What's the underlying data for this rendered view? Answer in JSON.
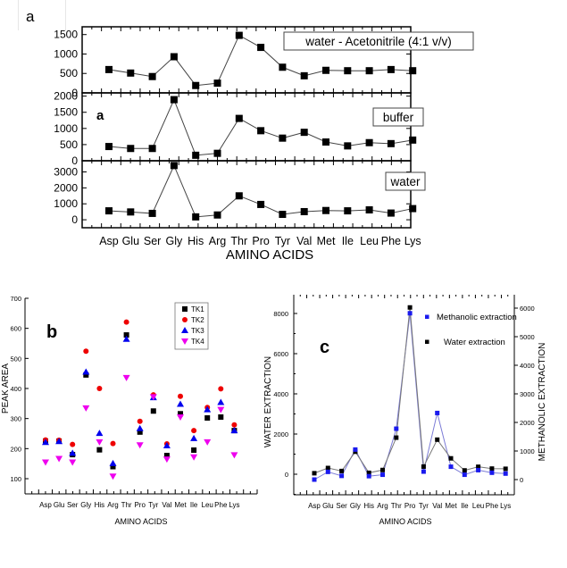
{
  "figure_label": "a",
  "chart_data": [
    {
      "id": "a",
      "type": "line",
      "panel_label": "a",
      "xlabel": "AMINO ACIDS",
      "categories": [
        "Asp",
        "Glu",
        "Ser",
        "Gly",
        "His",
        "Arg",
        "Thr",
        "Pro",
        "Tyr",
        "Val",
        "Met",
        "Ile",
        "Leu",
        "Phe",
        "Lys"
      ],
      "subplots": [
        {
          "legend": "water - Acetonitrile (4:1 v/v)",
          "ylim": [
            0,
            1700
          ],
          "yticks": [
            0,
            500,
            1000,
            1500
          ],
          "series": [
            {
              "name": "water - Acetonitrile (4:1 v/v)",
              "values": [
                600,
                510,
                420,
                930,
                190,
                250,
                1480,
                1170,
                660,
                440,
                580,
                570,
                570,
                600,
                570
              ]
            }
          ]
        },
        {
          "legend": "buffer",
          "annotation": "a",
          "ylim": [
            0,
            2100
          ],
          "yticks": [
            0,
            500,
            1000,
            1500,
            2000
          ],
          "series": [
            {
              "name": "buffer",
              "values": [
                440,
                380,
                380,
                1890,
                170,
                230,
                1310,
                930,
                700,
                880,
                580,
                460,
                560,
                530,
                640
              ]
            }
          ]
        },
        {
          "legend": "water",
          "ylim": [
            -500,
            3700
          ],
          "yticks": [
            0,
            1000,
            2000,
            3000
          ],
          "series": [
            {
              "name": "water",
              "values": [
                560,
                490,
                400,
                3400,
                180,
                300,
                1500,
                960,
                340,
                510,
                580,
                560,
                620,
                420,
                700
              ]
            }
          ]
        }
      ]
    },
    {
      "id": "b",
      "type": "scatter",
      "panel_label": "b",
      "xlabel": "AMINO ACIDS",
      "ylabel": "PEAK AREA",
      "ylim": [
        50,
        700
      ],
      "yticks": [
        100,
        200,
        300,
        400,
        500,
        600,
        700
      ],
      "categories": [
        "Asp",
        "Glu",
        "Ser",
        "Gly",
        "His",
        "Arg",
        "Thr",
        "Pro",
        "Tyr",
        "Val",
        "Met",
        "Ile",
        "Leu",
        "Phe",
        "Lys"
      ],
      "legend_position": "top-right",
      "series": [
        {
          "name": "TK1",
          "marker": "square",
          "color": "#000000",
          "values": [
            225,
            225,
            180,
            445,
            196,
            140,
            578,
            255,
            325,
            177,
            316,
            195,
            302,
            305,
            260
          ]
        },
        {
          "name": "TK2",
          "marker": "circle",
          "color": "#ee0000",
          "values": [
            229,
            228,
            214,
            524,
            400,
            217,
            621,
            291,
            379,
            216,
            374,
            260,
            337,
            399,
            279
          ]
        },
        {
          "name": "TK3",
          "marker": "triangle-up",
          "color": "#0000ee",
          "values": [
            221,
            224,
            185,
            455,
            251,
            151,
            564,
            267,
            370,
            210,
            348,
            234,
            330,
            354,
            260
          ]
        },
        {
          "name": "TK4",
          "marker": "triangle-down",
          "color": "#ee00ee",
          "values": [
            155,
            167,
            155,
            335,
            222,
            108,
            436,
            212,
            372,
            165,
            305,
            172,
            222,
            330,
            179
          ]
        }
      ]
    },
    {
      "id": "c",
      "type": "line",
      "panel_label": "c",
      "xlabel": "AMINO ACIDS",
      "ylabel": "WATER EXTRACTION",
      "ylabel_right": "METHANOLIC EXTRACTION",
      "ylim": [
        -1000,
        9000
      ],
      "yticks": [
        0,
        2000,
        4000,
        6000,
        8000
      ],
      "ylim_right": [
        -500,
        6600
      ],
      "yticks_right": [
        0,
        1000,
        2000,
        3000,
        4000,
        5000,
        6000
      ],
      "categories": [
        "Asp",
        "Glu",
        "Ser",
        "Gly",
        "His",
        "Arg",
        "Thr",
        "Pro",
        "Tyr",
        "Val",
        "Met",
        "Ile",
        "Leu",
        "Phe",
        "Lys"
      ],
      "legend_position": "top-right",
      "series": [
        {
          "name": "Methanolic extraction",
          "axis": "right",
          "color": "#1a1aee",
          "values": [
            0,
            270,
            130,
            1050,
            120,
            170,
            1780,
            5820,
            280,
            2330,
            450,
            170,
            330,
            240,
            210
          ]
        },
        {
          "name": "Water extraction",
          "axis": "left",
          "color": "#000000",
          "values": [
            50,
            310,
            160,
            1120,
            70,
            210,
            1820,
            8300,
            380,
            1720,
            790,
            190,
            370,
            280,
            270
          ]
        }
      ]
    }
  ]
}
